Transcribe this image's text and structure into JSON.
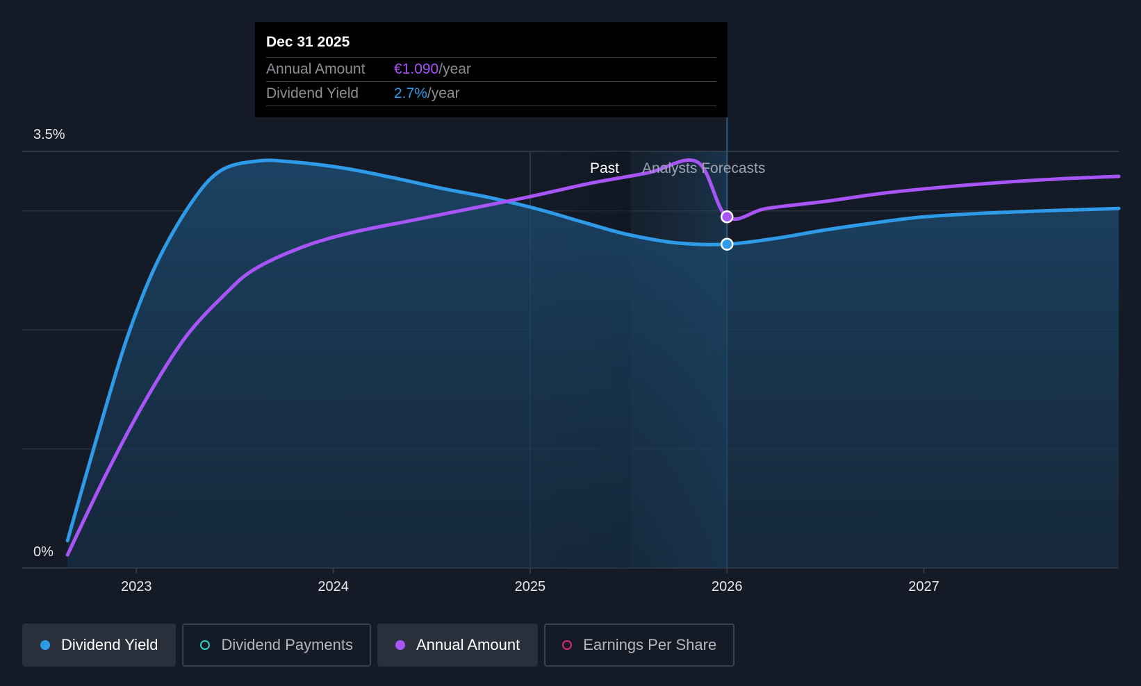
{
  "chart_data": {
    "type": "line",
    "y_axis": {
      "ylim": [
        0,
        3.5
      ],
      "top_label": "3.5%",
      "bottom_label": "0%"
    },
    "x_axis": {
      "xlim": [
        2022.42,
        2027.99
      ],
      "ticks": [
        {
          "value": 2023,
          "label": "2023"
        },
        {
          "value": 2024,
          "label": "2024"
        },
        {
          "value": 2025,
          "label": "2025"
        },
        {
          "value": 2026,
          "label": "2026"
        },
        {
          "value": 2027,
          "label": "2027"
        }
      ]
    },
    "regions": {
      "past_label": "Past",
      "forecast_label": "Analysts Forecasts",
      "highlight_start": 2025.0,
      "past_end": 2025.51,
      "cursor": 2026.0
    },
    "series": [
      {
        "name": "Dividend Yield",
        "color": "#2f9be8",
        "filled": true,
        "points": [
          [
            2022.65,
            0.23
          ],
          [
            2022.8,
            1.1
          ],
          [
            2022.95,
            1.92
          ],
          [
            2023.1,
            2.55
          ],
          [
            2023.28,
            3.07
          ],
          [
            2023.43,
            3.34
          ],
          [
            2023.62,
            3.42
          ],
          [
            2023.8,
            3.41
          ],
          [
            2024.05,
            3.36
          ],
          [
            2024.3,
            3.28
          ],
          [
            2024.55,
            3.19
          ],
          [
            2024.8,
            3.11
          ],
          [
            2025.05,
            3.01
          ],
          [
            2025.3,
            2.89
          ],
          [
            2025.5,
            2.8
          ],
          [
            2025.75,
            2.73
          ],
          [
            2026.0,
            2.72
          ],
          [
            2026.25,
            2.77
          ],
          [
            2026.5,
            2.84
          ],
          [
            2026.75,
            2.9
          ],
          [
            2027.0,
            2.95
          ],
          [
            2027.3,
            2.98
          ],
          [
            2027.6,
            3.0
          ],
          [
            2027.99,
            3.02
          ]
        ]
      },
      {
        "name": "Annual Amount",
        "color": "#a855f7",
        "filled": false,
        "points": [
          [
            2022.65,
            0.11
          ],
          [
            2022.85,
            0.8
          ],
          [
            2023.05,
            1.42
          ],
          [
            2023.25,
            1.94
          ],
          [
            2023.45,
            2.3
          ],
          [
            2023.6,
            2.51
          ],
          [
            2023.85,
            2.7
          ],
          [
            2024.1,
            2.82
          ],
          [
            2024.4,
            2.92
          ],
          [
            2024.7,
            3.02
          ],
          [
            2025.0,
            3.12
          ],
          [
            2025.3,
            3.23
          ],
          [
            2025.6,
            3.32
          ],
          [
            2025.85,
            3.41
          ],
          [
            2026.0,
            2.95
          ],
          [
            2026.2,
            3.02
          ],
          [
            2026.5,
            3.08
          ],
          [
            2026.8,
            3.15
          ],
          [
            2027.1,
            3.2
          ],
          [
            2027.4,
            3.24
          ],
          [
            2027.7,
            3.27
          ],
          [
            2027.99,
            3.29
          ]
        ]
      }
    ]
  },
  "tooltip": {
    "date": "Dec 31 2025",
    "rows": [
      {
        "label": "Annual Amount",
        "value": "€1.090",
        "unit": "/year"
      },
      {
        "label": "Dividend Yield",
        "value": "2.7%",
        "unit": "/year"
      }
    ]
  },
  "legend": [
    {
      "label": "Dividend Yield",
      "color": "#2f9be8",
      "state": "active"
    },
    {
      "label": "Dividend Payments",
      "color": "#2dd4bf",
      "state": "inactive"
    },
    {
      "label": "Annual Amount",
      "color": "#a855f7",
      "state": "active"
    },
    {
      "label": "Earnings Per Share",
      "color": "#db2777",
      "state": "inactive"
    }
  ]
}
